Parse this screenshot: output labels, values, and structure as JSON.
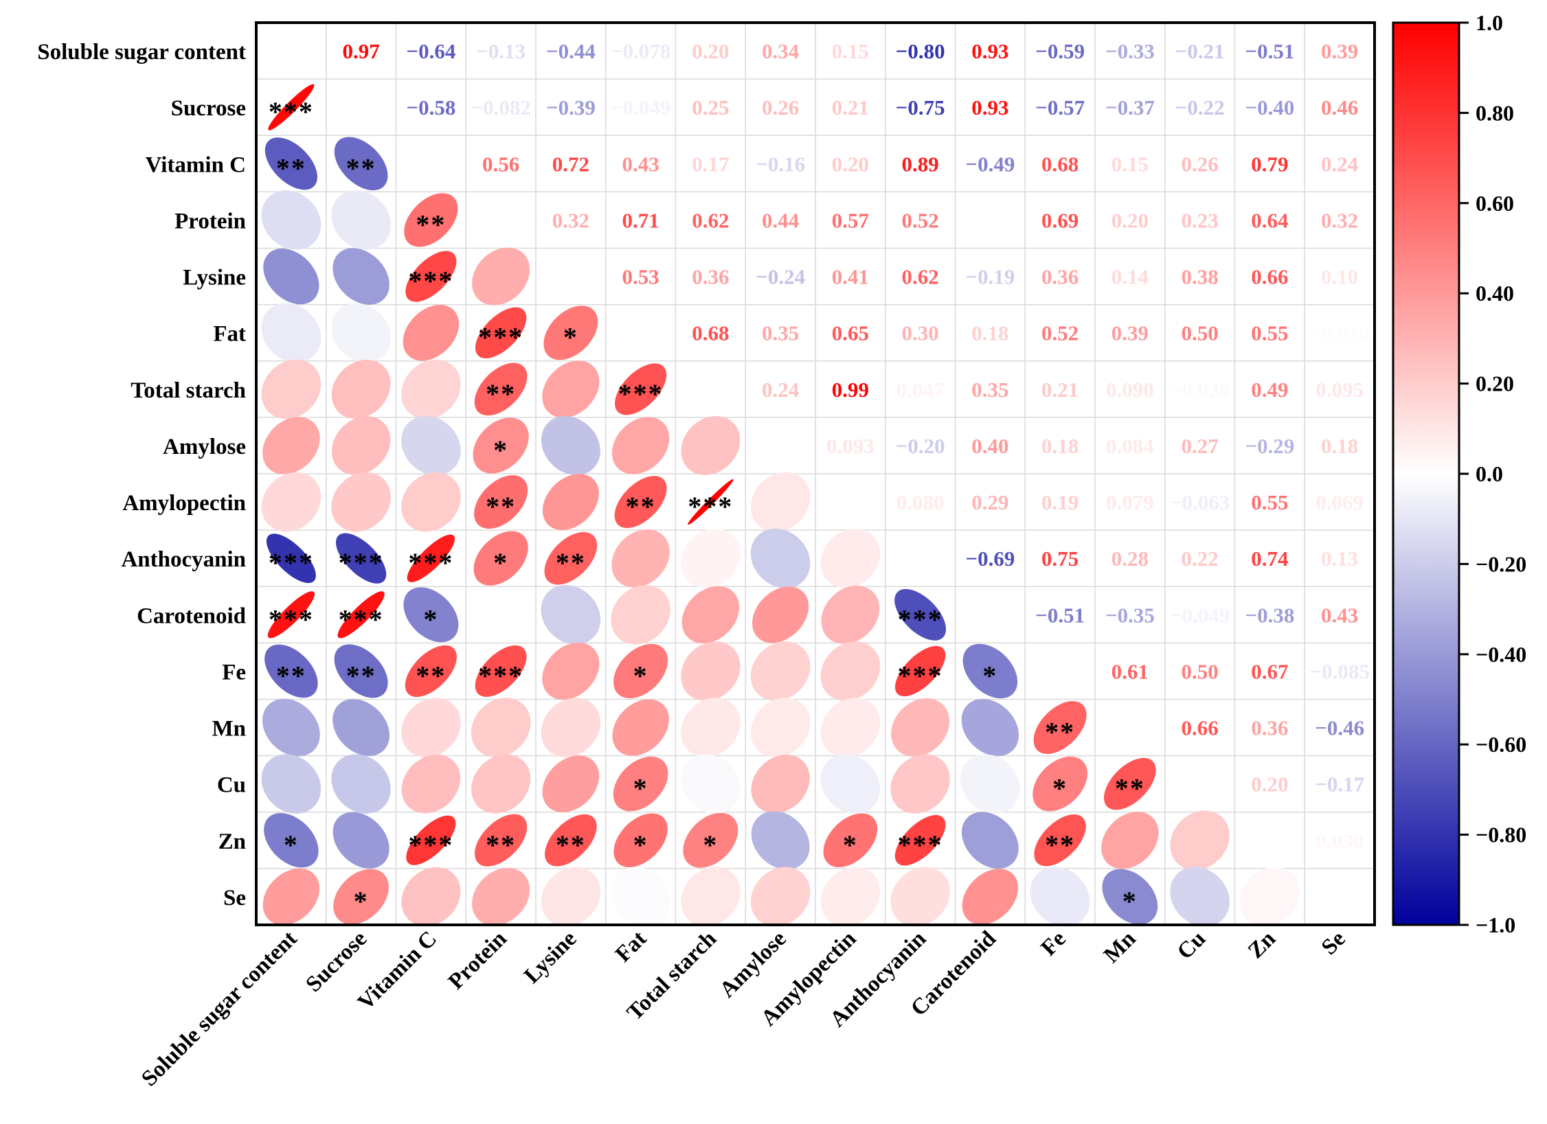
{
  "chart_data": {
    "type": "heatmap",
    "subtype": "correlation-matrix",
    "variables": [
      "Soluble sugar content",
      "Sucrose",
      "Vitamin C",
      "Protein",
      "Lysine",
      "Fat",
      "Total starch",
      "Amylose",
      "Amylopectin",
      "Anthocyanin",
      "Carotenoid",
      "Fe",
      "Mn",
      "Cu",
      "Zn",
      "Se"
    ],
    "upper_text": [
      [
        "",
        "0.97",
        "−0.64",
        "−0.13",
        "−0.44",
        "−0.078",
        "0.20",
        "0.34",
        "0.15",
        "−0.80",
        "0.93",
        "−0.59",
        "−0.33",
        "−0.21",
        "−0.51",
        "0.39"
      ],
      [
        "",
        "",
        "−0.58",
        "−0.082",
        "−0.39",
        "−0.049",
        "0.25",
        "0.26",
        "0.21",
        "−0.75",
        "0.93",
        "−0.57",
        "−0.37",
        "−0.22",
        "−0.40",
        "0.46"
      ],
      [
        "",
        "",
        "",
        "0.56",
        "0.72",
        "0.43",
        "0.17",
        "−0.16",
        "0.20",
        "0.89",
        "−0.49",
        "0.68",
        "0.15",
        "0.26",
        "0.79",
        "0.24"
      ],
      [
        "",
        "",
        "",
        "",
        "0.32",
        "0.71",
        "0.62",
        "0.44",
        "0.57",
        "0.52",
        "",
        "0.69",
        "0.20",
        "0.23",
        "0.64",
        "0.32"
      ],
      [
        "",
        "",
        "",
        "",
        "",
        "0.53",
        "0.36",
        "−0.24",
        "0.41",
        "0.62",
        "−0.19",
        "0.36",
        "0.14",
        "0.38",
        "0.66",
        "0.10"
      ],
      [
        "",
        "",
        "",
        "",
        "",
        "",
        "0.68",
        "0.35",
        "0.65",
        "0.30",
        "0.18",
        "0.52",
        "0.39",
        "0.50",
        "0.55",
        "−0.010"
      ],
      [
        "",
        "",
        "",
        "",
        "",
        "",
        "",
        "0.24",
        "0.99",
        "0.047",
        "0.35",
        "0.21",
        "0.090",
        "−0.020",
        "0.49",
        "0.095"
      ],
      [
        "",
        "",
        "",
        "",
        "",
        "",
        "",
        "",
        "0.093",
        "−0.20",
        "0.40",
        "0.18",
        "0.084",
        "0.27",
        "−0.29",
        "0.18"
      ],
      [
        "",
        "",
        "",
        "",
        "",
        "",
        "",
        "",
        "",
        "0.080",
        "0.29",
        "0.19",
        "0.079",
        "−0.063",
        "0.55",
        "0.069"
      ],
      [
        "",
        "",
        "",
        "",
        "",
        "",
        "",
        "",
        "",
        "",
        "−0.69",
        "0.75",
        "0.28",
        "0.22",
        "0.74",
        "0.13"
      ],
      [
        "",
        "",
        "",
        "",
        "",
        "",
        "",
        "",
        "",
        "",
        "",
        "−0.51",
        "−0.35",
        "−0.049",
        "−0.38",
        "0.43"
      ],
      [
        "",
        "",
        "",
        "",
        "",
        "",
        "",
        "",
        "",
        "",
        "",
        "",
        "0.61",
        "0.50",
        "0.67",
        "−0.085"
      ],
      [
        "",
        "",
        "",
        "",
        "",
        "",
        "",
        "",
        "",
        "",
        "",
        "",
        "",
        "0.66",
        "0.36",
        "−0.46"
      ],
      [
        "",
        "",
        "",
        "",
        "",
        "",
        "",
        "",
        "",
        "",
        "",
        "",
        "",
        "",
        "0.20",
        "−0.17"
      ],
      [
        "",
        "",
        "",
        "",
        "",
        "",
        "",
        "",
        "",
        "",
        "",
        "",
        "",
        "",
        "",
        "0.030"
      ],
      [
        "",
        "",
        "",
        "",
        "",
        "",
        "",
        "",
        "",
        "",
        "",
        "",
        "",
        "",
        "",
        ""
      ]
    ],
    "significance": [
      [
        "",
        "",
        "",
        "",
        "",
        "",
        "",
        "",
        "",
        "",
        "",
        "",
        "",
        "",
        "",
        ""
      ],
      [
        "***",
        "",
        "",
        "",
        "",
        "",
        "",
        "",
        "",
        "",
        "",
        "",
        "",
        "",
        "",
        ""
      ],
      [
        "**",
        "**",
        "",
        "",
        "",
        "",
        "",
        "",
        "",
        "",
        "",
        "",
        "",
        "",
        "",
        ""
      ],
      [
        "",
        "",
        "**",
        "",
        "",
        "",
        "",
        "",
        "",
        "",
        "",
        "",
        "",
        "",
        "",
        ""
      ],
      [
        "",
        "",
        "***",
        "",
        "",
        "",
        "",
        "",
        "",
        "",
        "",
        "",
        "",
        "",
        "",
        ""
      ],
      [
        "",
        "",
        "",
        "***",
        "*",
        "",
        "",
        "",
        "",
        "",
        "",
        "",
        "",
        "",
        "",
        ""
      ],
      [
        "",
        "",
        "",
        "**",
        "",
        "***",
        "",
        "",
        "",
        "",
        "",
        "",
        "",
        "",
        "",
        ""
      ],
      [
        "",
        "",
        "",
        "*",
        "",
        "",
        "",
        "",
        "",
        "",
        "",
        "",
        "",
        "",
        "",
        ""
      ],
      [
        "",
        "",
        "",
        "**",
        "",
        "**",
        "***",
        "",
        "",
        "",
        "",
        "",
        "",
        "",
        "",
        ""
      ],
      [
        "***",
        "***",
        "***",
        "*",
        "**",
        "",
        "",
        "",
        "",
        "",
        "",
        "",
        "",
        "",
        "",
        ""
      ],
      [
        "***",
        "***",
        "*",
        "",
        "",
        "",
        "",
        "",
        "",
        "***",
        "",
        "",
        "",
        "",
        "",
        ""
      ],
      [
        "**",
        "**",
        "**",
        "***",
        "",
        "*",
        "",
        "",
        "",
        "***",
        "*",
        "",
        "",
        "",
        "",
        ""
      ],
      [
        "",
        "",
        "",
        "",
        "",
        "",
        "",
        "",
        "",
        "",
        "",
        "**",
        "",
        "",
        "",
        ""
      ],
      [
        "",
        "",
        "",
        "",
        "",
        "*",
        "",
        "",
        "",
        "",
        "",
        "*",
        "**",
        "",
        "",
        ""
      ],
      [
        "*",
        "",
        "***",
        "**",
        "**",
        "*",
        "*",
        "",
        "*",
        "***",
        "",
        "**",
        "",
        "",
        "",
        ""
      ],
      [
        "",
        "*",
        "",
        "",
        "",
        "",
        "",
        "",
        "",
        "",
        "",
        "",
        "*",
        "",
        "",
        ""
      ]
    ],
    "colorbar": {
      "min": -1.0,
      "max": 1.0,
      "ticks": [
        "1.0",
        "0.80",
        "0.60",
        "0.40",
        "0.20",
        "0.0",
        "−0.20",
        "−0.40",
        "−0.60",
        "−0.80",
        "−1.0"
      ],
      "colors": {
        "negative": "#00009c",
        "zero": "#ffffff",
        "positive": "#ff0000"
      }
    }
  }
}
